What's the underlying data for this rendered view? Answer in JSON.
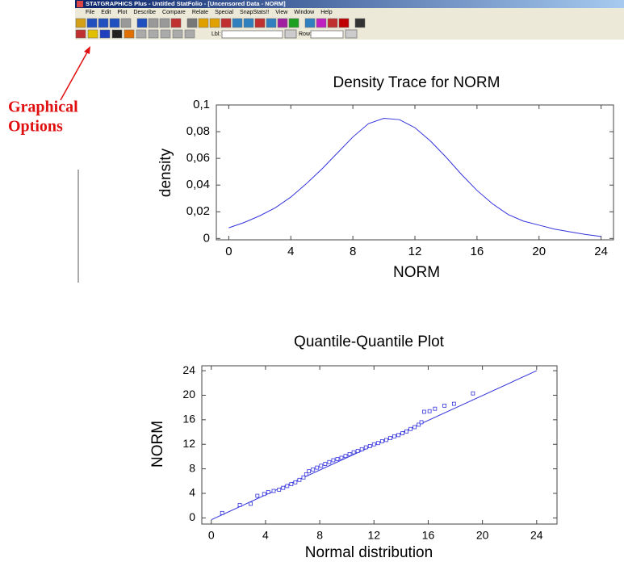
{
  "window": {
    "title": "STATGRAPHICS Plus - Untitled StatFolio - [Uncensored Data - NORM]",
    "menu": [
      "File",
      "Edit",
      "Plot",
      "Describe",
      "Compare",
      "Relate",
      "Special",
      "SnapStats!!",
      "View",
      "Window",
      "Help"
    ],
    "toolbar_labels": [
      "Lbl:",
      "Row:"
    ]
  },
  "annotation": {
    "lines": [
      "Graphical",
      "Options"
    ],
    "color": "#e01010"
  },
  "chart_data": [
    {
      "type": "line",
      "title": "Density Trace for NORM",
      "xlabel": "NORM",
      "ylabel": "density",
      "color": "#3333dd",
      "x": [
        0,
        1,
        2,
        3,
        4,
        5,
        6,
        7,
        8,
        9,
        10,
        11,
        12,
        13,
        14,
        15,
        16,
        17,
        18,
        19,
        20,
        21,
        22,
        23,
        24
      ],
      "values": [
        0.008,
        0.012,
        0.017,
        0.023,
        0.031,
        0.041,
        0.052,
        0.064,
        0.076,
        0.086,
        0.09,
        0.089,
        0.083,
        0.073,
        0.061,
        0.048,
        0.036,
        0.026,
        0.018,
        0.013,
        0.01,
        0.007,
        0.005,
        0.003,
        0.0015
      ],
      "xlim": [
        -0.8,
        24.8
      ],
      "ylim": [
        -0.001,
        0.1
      ],
      "xticks": [
        0,
        4,
        8,
        12,
        16,
        20,
        24
      ],
      "yticks": [
        0,
        {
          "value": 0.02,
          "label": "0,02"
        },
        {
          "value": 0.04,
          "label": "0,04"
        },
        {
          "value": 0.06,
          "label": "0,06"
        },
        {
          "value": 0.08,
          "label": "0,08"
        },
        {
          "value": 0.1,
          "label": "0,1"
        }
      ]
    },
    {
      "type": "scatter",
      "title": "Quantile-Quantile Plot",
      "xlabel": "Normal distribution",
      "ylabel": "NORM",
      "color": "#3333dd",
      "x": [
        0.8,
        2.1,
        2.9,
        3.4,
        3.9,
        4.2,
        4.6,
        5,
        5.3,
        5.6,
        5.9,
        6.2,
        6.5,
        6.8,
        7,
        7.2,
        7.5,
        7.8,
        8.1,
        8.4,
        8.7,
        9,
        9.3,
        9.6,
        9.9,
        10.2,
        10.5,
        10.8,
        11.1,
        11.4,
        11.7,
        12,
        12.3,
        12.6,
        12.9,
        13.2,
        13.5,
        13.8,
        14.1,
        14.4,
        14.7,
        15,
        15.3,
        15.5,
        15.7,
        16.1,
        16.5,
        17.2,
        17.9,
        19.3
      ],
      "values": [
        0.8,
        2.1,
        2.3,
        3.6,
        3.9,
        4.2,
        4.4,
        4.6,
        4.9,
        5.2,
        5.5,
        5.8,
        6.2,
        6.6,
        7.1,
        7.6,
        7.9,
        8.2,
        8.5,
        8.8,
        9.1,
        9.4,
        9.6,
        9.8,
        10.1,
        10.4,
        10.7,
        10.9,
        11.2,
        11.5,
        11.7,
        12,
        12.2,
        12.5,
        12.7,
        13,
        13.3,
        13.5,
        13.8,
        14.1,
        14.5,
        14.8,
        15.2,
        15.6,
        17.3,
        17.4,
        17.8,
        18.3,
        18.6,
        20.3
      ],
      "fit_line": {
        "x": [
          0,
          24
        ],
        "values": [
          -0.3,
          24
        ]
      },
      "xlim": [
        -0.7,
        25.5
      ],
      "ylim": [
        -1,
        24.8
      ],
      "xticks": [
        0,
        4,
        8,
        12,
        16,
        20,
        24
      ],
      "yticks": [
        0,
        4,
        8,
        12,
        16,
        20,
        24
      ]
    }
  ]
}
